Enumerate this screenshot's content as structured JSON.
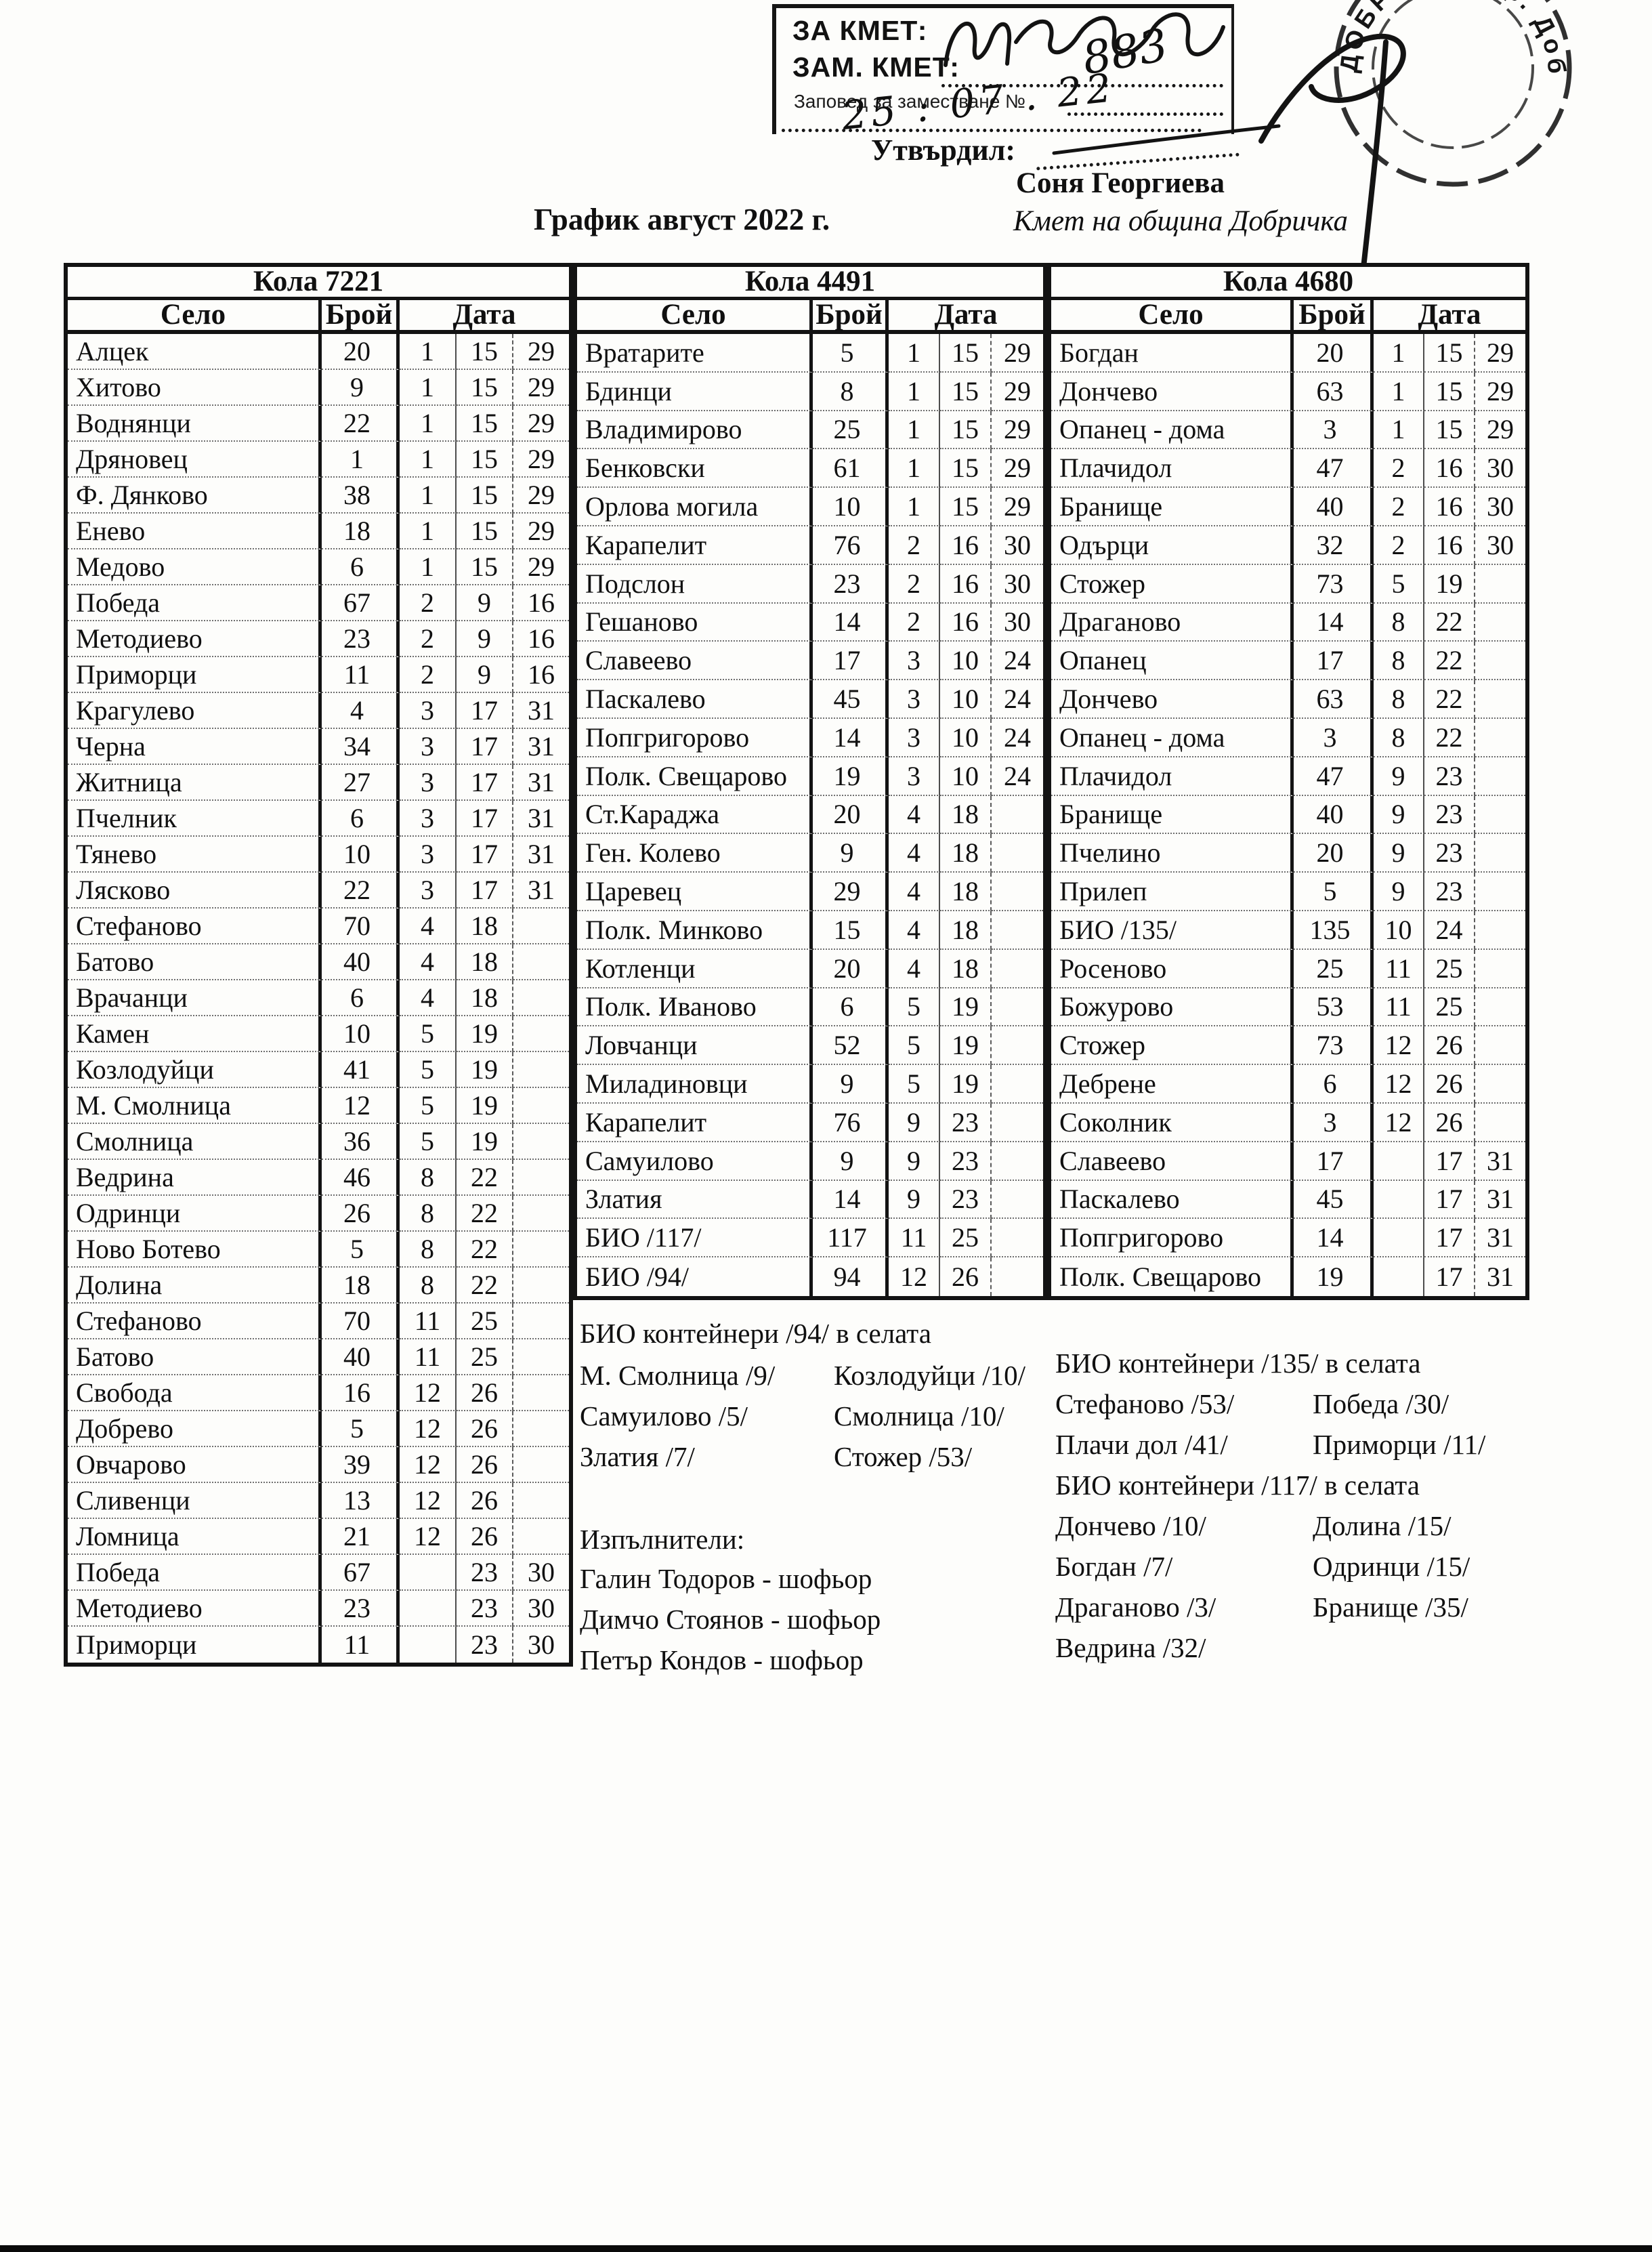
{
  "doc": {
    "title": "График август 2022 г.",
    "approval": {
      "stamp_line1": "ЗА КМЕТ:",
      "stamp_line2": "ЗАМ. КМЕТ:",
      "stamp_line3": "Заповед за заместване №",
      "handwritten_number": "883",
      "handwritten_date": "25 : 07 . 22",
      "utvardil_label": "Утвърдил:",
      "approver_name": "Соня Георгиева",
      "approver_title": "Кмет  на община Добричка",
      "round_stamp_text": "ДОБРИЧКА, гр. Добрич"
    }
  },
  "table_headers": {
    "selo": "Село",
    "broy": "Брой",
    "data": "Дата"
  },
  "vehicles": [
    {
      "name": "Кола 7221",
      "rows": [
        {
          "selo": "Алцек",
          "broy": "20",
          "d1": "1",
          "d2": "15",
          "d3": "29"
        },
        {
          "selo": "Хитово",
          "broy": "9",
          "d1": "1",
          "d2": "15",
          "d3": "29"
        },
        {
          "selo": "Воднянци",
          "broy": "22",
          "d1": "1",
          "d2": "15",
          "d3": "29"
        },
        {
          "selo": "Дряновец",
          "broy": "1",
          "d1": "1",
          "d2": "15",
          "d3": "29"
        },
        {
          "selo": "Ф. Дянково",
          "broy": "38",
          "d1": "1",
          "d2": "15",
          "d3": "29"
        },
        {
          "selo": "Енево",
          "broy": "18",
          "d1": "1",
          "d2": "15",
          "d3": "29"
        },
        {
          "selo": "Медово",
          "broy": "6",
          "d1": "1",
          "d2": "15",
          "d3": "29"
        },
        {
          "selo": "Победа",
          "broy": "67",
          "d1": "2",
          "d2": "9",
          "d3": "16"
        },
        {
          "selo": "Методиево",
          "broy": "23",
          "d1": "2",
          "d2": "9",
          "d3": "16"
        },
        {
          "selo": "Приморци",
          "broy": "11",
          "d1": "2",
          "d2": "9",
          "d3": "16"
        },
        {
          "selo": "Крагулево",
          "broy": "4",
          "d1": "3",
          "d2": "17",
          "d3": "31"
        },
        {
          "selo": "Черна",
          "broy": "34",
          "d1": "3",
          "d2": "17",
          "d3": "31"
        },
        {
          "selo": "Житница",
          "broy": "27",
          "d1": "3",
          "d2": "17",
          "d3": "31"
        },
        {
          "selo": "Пчелник",
          "broy": "6",
          "d1": "3",
          "d2": "17",
          "d3": "31"
        },
        {
          "selo": "Тянево",
          "broy": "10",
          "d1": "3",
          "d2": "17",
          "d3": "31"
        },
        {
          "selo": "Лясково",
          "broy": "22",
          "d1": "3",
          "d2": "17",
          "d3": "31"
        },
        {
          "selo": "Стефаново",
          "broy": "70",
          "d1": "4",
          "d2": "18",
          "d3": ""
        },
        {
          "selo": "Батово",
          "broy": "40",
          "d1": "4",
          "d2": "18",
          "d3": ""
        },
        {
          "selo": "Врачанци",
          "broy": "6",
          "d1": "4",
          "d2": "18",
          "d3": ""
        },
        {
          "selo": "Камен",
          "broy": "10",
          "d1": "5",
          "d2": "19",
          "d3": ""
        },
        {
          "selo": "Козлодуйци",
          "broy": "41",
          "d1": "5",
          "d2": "19",
          "d3": ""
        },
        {
          "selo": "М. Смолница",
          "broy": "12",
          "d1": "5",
          "d2": "19",
          "d3": ""
        },
        {
          "selo": "Смолница",
          "broy": "36",
          "d1": "5",
          "d2": "19",
          "d3": ""
        },
        {
          "selo": "Ведрина",
          "broy": "46",
          "d1": "8",
          "d2": "22",
          "d3": ""
        },
        {
          "selo": "Одринци",
          "broy": "26",
          "d1": "8",
          "d2": "22",
          "d3": ""
        },
        {
          "selo": "Ново Ботево",
          "broy": "5",
          "d1": "8",
          "d2": "22",
          "d3": ""
        },
        {
          "selo": "Долина",
          "broy": "18",
          "d1": "8",
          "d2": "22",
          "d3": ""
        },
        {
          "selo": "Стефаново",
          "broy": "70",
          "d1": "11",
          "d2": "25",
          "d3": ""
        },
        {
          "selo": "Батово",
          "broy": "40",
          "d1": "11",
          "d2": "25",
          "d3": ""
        },
        {
          "selo": "Свобода",
          "broy": "16",
          "d1": "12",
          "d2": "26",
          "d3": ""
        },
        {
          "selo": "Добрево",
          "broy": "5",
          "d1": "12",
          "d2": "26",
          "d3": ""
        },
        {
          "selo": "Овчарово",
          "broy": "39",
          "d1": "12",
          "d2": "26",
          "d3": ""
        },
        {
          "selo": "Сливенци",
          "broy": "13",
          "d1": "12",
          "d2": "26",
          "d3": ""
        },
        {
          "selo": "Ломница",
          "broy": "21",
          "d1": "12",
          "d2": "26",
          "d3": ""
        },
        {
          "selo": "Победа",
          "broy": "67",
          "d1": "",
          "d2": "23",
          "d3": "30"
        },
        {
          "selo": "Методиево",
          "broy": "23",
          "d1": "",
          "d2": "23",
          "d3": "30"
        },
        {
          "selo": "Приморци",
          "broy": "11",
          "d1": "",
          "d2": "23",
          "d3": "30"
        }
      ]
    },
    {
      "name": "Кола 4491",
      "rows": [
        {
          "selo": "Вратарите",
          "broy": "5",
          "d1": "1",
          "d2": "15",
          "d3": "29"
        },
        {
          "selo": "Бдинци",
          "broy": "8",
          "d1": "1",
          "d2": "15",
          "d3": "29"
        },
        {
          "selo": "Владимирово",
          "broy": "25",
          "d1": "1",
          "d2": "15",
          "d3": "29"
        },
        {
          "selo": "Бенковски",
          "broy": "61",
          "d1": "1",
          "d2": "15",
          "d3": "29"
        },
        {
          "selo": "Орлова могила",
          "broy": "10",
          "d1": "1",
          "d2": "15",
          "d3": "29"
        },
        {
          "selo": "Карапелит",
          "broy": "76",
          "d1": "2",
          "d2": "16",
          "d3": "30"
        },
        {
          "selo": "Подслон",
          "broy": "23",
          "d1": "2",
          "d2": "16",
          "d3": "30"
        },
        {
          "selo": "Гешаново",
          "broy": "14",
          "d1": "2",
          "d2": "16",
          "d3": "30"
        },
        {
          "selo": "Славеево",
          "broy": "17",
          "d1": "3",
          "d2": "10",
          "d3": "24"
        },
        {
          "selo": "Паскалево",
          "broy": "45",
          "d1": "3",
          "d2": "10",
          "d3": "24"
        },
        {
          "selo": "Попгригорово",
          "broy": "14",
          "d1": "3",
          "d2": "10",
          "d3": "24"
        },
        {
          "selo": "Полк. Свещарово",
          "broy": "19",
          "d1": "3",
          "d2": "10",
          "d3": "24"
        },
        {
          "selo": "Ст.Караджа",
          "broy": "20",
          "d1": "4",
          "d2": "18",
          "d3": ""
        },
        {
          "selo": "Ген. Колево",
          "broy": "9",
          "d1": "4",
          "d2": "18",
          "d3": ""
        },
        {
          "selo": "Царевец",
          "broy": "29",
          "d1": "4",
          "d2": "18",
          "d3": ""
        },
        {
          "selo": "Полк. Минково",
          "broy": "15",
          "d1": "4",
          "d2": "18",
          "d3": ""
        },
        {
          "selo": "Котленци",
          "broy": "20",
          "d1": "4",
          "d2": "18",
          "d3": ""
        },
        {
          "selo": "Полк. Иваново",
          "broy": "6",
          "d1": "5",
          "d2": "19",
          "d3": ""
        },
        {
          "selo": "Ловчанци",
          "broy": "52",
          "d1": "5",
          "d2": "19",
          "d3": ""
        },
        {
          "selo": "Миладиновци",
          "broy": "9",
          "d1": "5",
          "d2": "19",
          "d3": ""
        },
        {
          "selo": "Карапелит",
          "broy": "76",
          "d1": "9",
          "d2": "23",
          "d3": ""
        },
        {
          "selo": "Самуилово",
          "broy": "9",
          "d1": "9",
          "d2": "23",
          "d3": ""
        },
        {
          "selo": "Златия",
          "broy": "14",
          "d1": "9",
          "d2": "23",
          "d3": ""
        },
        {
          "selo": "БИО /117/",
          "broy": "117",
          "d1": "11",
          "d2": "25",
          "d3": ""
        },
        {
          "selo": "БИО /94/",
          "broy": "94",
          "d1": "12",
          "d2": "26",
          "d3": ""
        }
      ]
    },
    {
      "name": "Кола 4680",
      "rows": [
        {
          "selo": "Богдан",
          "broy": "20",
          "d1": "1",
          "d2": "15",
          "d3": "29"
        },
        {
          "selo": "Дончево",
          "broy": "63",
          "d1": "1",
          "d2": "15",
          "d3": "29"
        },
        {
          "selo": "Опанец - дома",
          "broy": "3",
          "d1": "1",
          "d2": "15",
          "d3": "29"
        },
        {
          "selo": "Плачидол",
          "broy": "47",
          "d1": "2",
          "d2": "16",
          "d3": "30"
        },
        {
          "selo": "Бранище",
          "broy": "40",
          "d1": "2",
          "d2": "16",
          "d3": "30"
        },
        {
          "selo": "Одърци",
          "broy": "32",
          "d1": "2",
          "d2": "16",
          "d3": "30"
        },
        {
          "selo": "Стожер",
          "broy": "73",
          "d1": "5",
          "d2": "19",
          "d3": ""
        },
        {
          "selo": "Драганово",
          "broy": "14",
          "d1": "8",
          "d2": "22",
          "d3": ""
        },
        {
          "selo": "Опанец",
          "broy": "17",
          "d1": "8",
          "d2": "22",
          "d3": ""
        },
        {
          "selo": "Дончево",
          "broy": "63",
          "d1": "8",
          "d2": "22",
          "d3": ""
        },
        {
          "selo": "Опанец - дома",
          "broy": "3",
          "d1": "8",
          "d2": "22",
          "d3": ""
        },
        {
          "selo": "Плачидол",
          "broy": "47",
          "d1": "9",
          "d2": "23",
          "d3": ""
        },
        {
          "selo": "Бранище",
          "broy": "40",
          "d1": "9",
          "d2": "23",
          "d3": ""
        },
        {
          "selo": "Пчелино",
          "broy": "20",
          "d1": "9",
          "d2": "23",
          "d3": ""
        },
        {
          "selo": "Прилеп",
          "broy": "5",
          "d1": "9",
          "d2": "23",
          "d3": ""
        },
        {
          "selo": "БИО /135/",
          "broy": "135",
          "d1": "10",
          "d2": "24",
          "d3": ""
        },
        {
          "selo": "Росеново",
          "broy": "25",
          "d1": "11",
          "d2": "25",
          "d3": ""
        },
        {
          "selo": "Божурово",
          "broy": "53",
          "d1": "11",
          "d2": "25",
          "d3": ""
        },
        {
          "selo": "Стожер",
          "broy": "73",
          "d1": "12",
          "d2": "26",
          "d3": ""
        },
        {
          "selo": "Дебрене",
          "broy": "6",
          "d1": "12",
          "d2": "26",
          "d3": ""
        },
        {
          "selo": "Соколник",
          "broy": "3",
          "d1": "12",
          "d2": "26",
          "d3": ""
        },
        {
          "selo": "Славеево",
          "broy": "17",
          "d1": "",
          "d2": "17",
          "d3": "31"
        },
        {
          "selo": "Паскалево",
          "broy": "45",
          "d1": "",
          "d2": "17",
          "d3": "31"
        },
        {
          "selo": "Попгригорово",
          "broy": "14",
          "d1": "",
          "d2": "17",
          "d3": "31"
        },
        {
          "selo": "Полк. Свещарово",
          "broy": "19",
          "d1": "",
          "d2": "17",
          "d3": "31"
        }
      ]
    }
  ],
  "notes_mid": {
    "title": "БИО контейнери /94/ в селата",
    "pairs": [
      [
        "М. Смолница /9/",
        "Козлодуйци /10/"
      ],
      [
        "Самуилово /5/",
        "Смолница /10/"
      ],
      [
        "Златия /7/",
        "Стожер /53/"
      ]
    ]
  },
  "notes_right": {
    "title1": "БИО контейнери /135/ в селата",
    "pairs1": [
      [
        "Стефаново /53/",
        "Победа /30/"
      ],
      [
        "Плачи дол /41/",
        "Приморци /11/"
      ]
    ],
    "title2": "БИО контейнери /117/ в селата",
    "pairs2": [
      [
        "Дончево /10/",
        "Долина /15/"
      ],
      [
        "Богдан /7/",
        "Одринци /15/"
      ],
      [
        "Драганово /3/",
        "Бранище /35/"
      ],
      [
        "Ведрина /32/",
        ""
      ]
    ]
  },
  "executors": {
    "title": "Изпълнители:",
    "names": [
      "Галин Тодоров - шофьор",
      "Димчо Стоянов - шофьор",
      "Петър Кондов - шофьор"
    ]
  }
}
